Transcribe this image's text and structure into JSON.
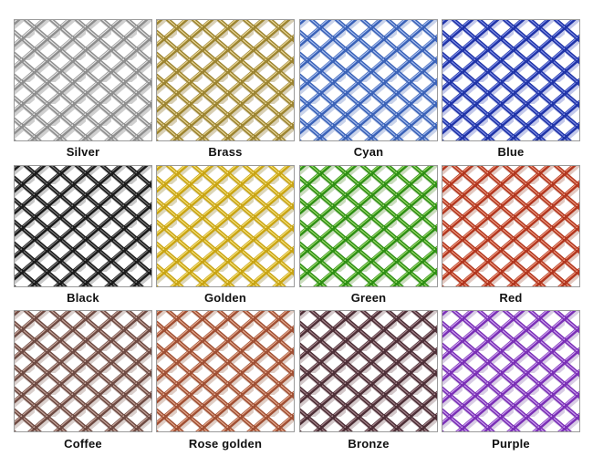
{
  "swatches": [
    {
      "label": "Silver",
      "color": "#8e8e8e",
      "highlight": "#e6e6e6",
      "shadow": "#cfcfcf"
    },
    {
      "label": "Brass",
      "color": "#9c8430",
      "highlight": "#ecd99a",
      "shadow": "#d8cfb4"
    },
    {
      "label": "Cyan",
      "color": "#3a62b8",
      "highlight": "#a9c0f0",
      "shadow": "#c9d3ea"
    },
    {
      "label": "Blue",
      "color": "#1f33a8",
      "highlight": "#7f8fe6",
      "shadow": "#c3c8ea"
    },
    {
      "label": "Black",
      "color": "#1a1a1a",
      "highlight": "#7a7a7a",
      "shadow": "#c8c8c8"
    },
    {
      "label": "Golden",
      "color": "#c9a413",
      "highlight": "#f6e27a",
      "shadow": "#dcd6b8"
    },
    {
      "label": "Green",
      "color": "#2e8f14",
      "highlight": "#9ddb6c",
      "shadow": "#c9dcbc"
    },
    {
      "label": "Red",
      "color": "#b2361e",
      "highlight": "#ee9a80",
      "shadow": "#e2c8c0"
    },
    {
      "label": "Coffee",
      "color": "#6e4a42",
      "highlight": "#c7a79d",
      "shadow": "#d9cfcc"
    },
    {
      "label": "Rose golden",
      "color": "#a04f33",
      "highlight": "#e6ab8f",
      "shadow": "#dfcdc4"
    },
    {
      "label": "Bronze",
      "color": "#4d2e36",
      "highlight": "#a4848b",
      "shadow": "#d2c7c9"
    },
    {
      "label": "Purple",
      "color": "#7a2fb6",
      "highlight": "#cda1ef",
      "shadow": "#d8cce4"
    }
  ]
}
